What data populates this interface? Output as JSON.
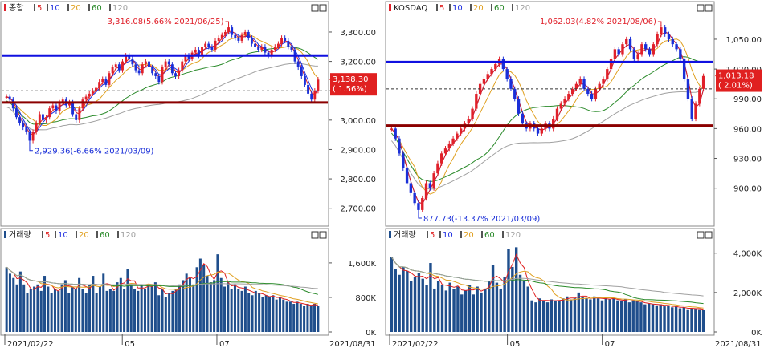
{
  "colors": {
    "up": "#e0202a",
    "down": "#1a2fd8",
    "ma5": "#e02020",
    "ma10": "#2030e0",
    "ma20": "#e0a020",
    "ma60": "#2a8a2a",
    "ma120": "#a0a0a0",
    "support": "#8b0000",
    "resistance": "#1010e0",
    "volbar": "#1f4e8c",
    "cursor": "#e02020"
  },
  "panels": [
    {
      "price_title": "종합",
      "vol_title": "거래량",
      "legend": [
        "5",
        "10",
        "20",
        "60",
        "120"
      ],
      "price_ticks": [
        "3,300.00",
        "3,200.00",
        "3,100.00",
        "3,000.00",
        "2,900.00",
        "2,800.00",
        "2,700.00"
      ],
      "vol_ticks": [
        "1,600K",
        "800K",
        "0K"
      ],
      "x_labels": [
        "2021/02/22",
        "05",
        "07"
      ],
      "end_date": "2021/08/31",
      "current_value": "3,138.30",
      "current_change": "( 1.56%)",
      "high_label": "3,316.08(5.66% 2021/06/25)",
      "low_label": "2,929.36(-6.66% 2021/03/09)"
    },
    {
      "price_title": "KOSDAQ",
      "vol_title": "거래량",
      "legend": [
        "5",
        "10",
        "20",
        "60",
        "120"
      ],
      "price_ticks": [
        "1,050.00",
        "1,020.00",
        "990.00",
        "960.00",
        "930.00",
        "900.00"
      ],
      "vol_ticks": [
        "4,000K",
        "2,000K",
        "0K"
      ],
      "x_labels": [
        "2021/02/22",
        "05",
        "07"
      ],
      "end_date": "2021/08/31",
      "current_value": "1,013.18",
      "current_change": "( 2.01%)",
      "high_label": "1,062.03(4.82% 2021/08/06)",
      "low_label": "877.73(-13.37% 2021/03/09)"
    }
  ],
  "chart_data": [
    {
      "type": "candlestick",
      "title": "종합",
      "x_range": [
        "2021/02/22",
        "2021/08/31"
      ],
      "ylim": [
        2650,
        3360
      ],
      "support": 3060,
      "resistance": 3220,
      "reference": 3100,
      "current": 3138.3,
      "high": 3316.08,
      "low": 2929.36,
      "closes": [
        3080,
        3070,
        3040,
        3010,
        2990,
        2975,
        2960,
        2930,
        2960,
        2990,
        3020,
        3000,
        3010,
        3040,
        3050,
        3030,
        3060,
        3070,
        3050,
        3060,
        3020,
        3000,
        3040,
        3070,
        3080,
        3090,
        3100,
        3110,
        3130,
        3140,
        3120,
        3160,
        3180,
        3190,
        3170,
        3200,
        3220,
        3210,
        3190,
        3170,
        3160,
        3190,
        3200,
        3180,
        3160,
        3150,
        3130,
        3180,
        3200,
        3190,
        3160,
        3150,
        3170,
        3200,
        3220,
        3210,
        3230,
        3240,
        3220,
        3250,
        3260,
        3250,
        3240,
        3270,
        3280,
        3290,
        3300,
        3316,
        3290,
        3280,
        3270,
        3290,
        3300,
        3280,
        3260,
        3250,
        3240,
        3250,
        3230,
        3220,
        3240,
        3250,
        3260,
        3280,
        3270,
        3250,
        3240,
        3200,
        3180,
        3150,
        3120,
        3090,
        3070,
        3100,
        3138
      ]
    },
    {
      "type": "candlestick",
      "title": "KOSDAQ",
      "x_range": [
        "2021/02/22",
        "2021/08/31"
      ],
      "ylim": [
        865,
        1075
      ],
      "support": 963,
      "resistance": 1027,
      "reference": 1000,
      "current": 1013.18,
      "high": 1062.03,
      "low": 877.73,
      "closes": [
        960,
        950,
        935,
        920,
        905,
        895,
        885,
        878,
        890,
        905,
        900,
        915,
        925,
        935,
        940,
        945,
        950,
        955,
        960,
        965,
        970,
        980,
        995,
        1005,
        1010,
        1015,
        1020,
        1025,
        1030,
        1020,
        1010,
        1000,
        990,
        975,
        965,
        960,
        965,
        960,
        955,
        960,
        965,
        960,
        970,
        980,
        985,
        990,
        995,
        1000,
        1005,
        1010,
        1000,
        995,
        990,
        1000,
        1005,
        1010,
        1020,
        1030,
        1040,
        1035,
        1045,
        1050,
        1040,
        1030,
        1035,
        1045,
        1040,
        1035,
        1045,
        1055,
        1062,
        1055,
        1050,
        1045,
        1040,
        1030,
        1010,
        990,
        970,
        985,
        1000,
        1013
      ]
    },
    {
      "type": "bar",
      "title": "거래량",
      "ylim": [
        0,
        2100
      ],
      "unit": "K",
      "values": [
        1500,
        1350,
        1250,
        1100,
        1400,
        1100,
        900,
        1000,
        1050,
        1100,
        950,
        1300,
        1050,
        900,
        1000,
        950,
        1100,
        1200,
        900,
        1050,
        1000,
        1250,
        1000,
        900,
        1100,
        1300,
        900,
        1050,
        1350,
        950,
        1000,
        950,
        1150,
        1250,
        1000,
        1450,
        1100,
        1000,
        950,
        1100,
        1000,
        1100,
        1050,
        1150,
        850,
        1000,
        800,
        900,
        950,
        1000,
        1100,
        1200,
        1350,
        1250,
        1100,
        1500,
        1700,
        1550,
        1300,
        1150,
        1200,
        1800,
        1250,
        1050,
        1150,
        1000,
        1100,
        1000,
        950,
        1050,
        900,
        850,
        950,
        900,
        800,
        850,
        800,
        850,
        750,
        800,
        750,
        700,
        700,
        650,
        700,
        650,
        600,
        650,
        600,
        650,
        600
      ]
    },
    {
      "type": "bar",
      "title": "거래량",
      "ylim": [
        0,
        4600
      ],
      "unit": "K",
      "values": [
        3800,
        3200,
        2900,
        3300,
        3100,
        2600,
        2800,
        3000,
        2700,
        2400,
        3500,
        2200,
        2600,
        2400,
        2100,
        2500,
        2200,
        2300,
        1900,
        2100,
        2400,
        1900,
        2300,
        2000,
        2200,
        2600,
        3400,
        2500,
        2200,
        2800,
        4200,
        3300,
        4300,
        2900,
        2600,
        2300,
        1600,
        1500,
        1700,
        1600,
        1500,
        1650,
        1600,
        1550,
        1700,
        1800,
        1650,
        1700,
        2000,
        1750,
        1700,
        1650,
        1800,
        1700,
        1600,
        1750,
        1650,
        1700,
        1600,
        1550,
        1650,
        1500,
        1600,
        1550,
        1500,
        1400,
        1450,
        1400,
        1350,
        1400,
        1300,
        1350,
        1250,
        1300,
        1200,
        1250,
        1150,
        1200,
        1200,
        1150,
        1100
      ]
    }
  ]
}
